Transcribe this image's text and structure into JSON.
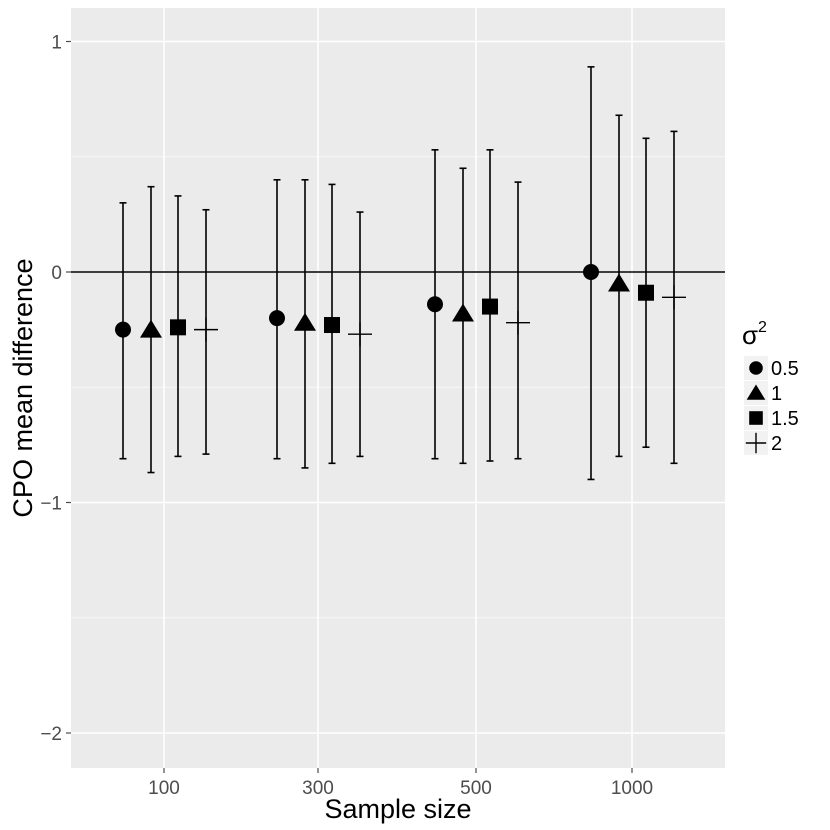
{
  "chart_data": {
    "type": "scatter",
    "subtype": "point-errorbar",
    "xlabel": "Sample size",
    "ylabel": "CPO mean difference",
    "categories": [
      "100",
      "300",
      "500",
      "1000"
    ],
    "ylim": [
      -2.15,
      1.15
    ],
    "yticks": [
      {
        "value": 1,
        "label": "1"
      },
      {
        "value": 0,
        "label": "0"
      },
      {
        "value": -1,
        "label": "−1"
      },
      {
        "value": -2,
        "label": "−2"
      }
    ],
    "reference_line": 0,
    "grid": true,
    "legend": {
      "position": "right",
      "title": "σ",
      "title_superscript": "2"
    },
    "series": [
      {
        "name": "0.5",
        "shape": "circle",
        "values": [
          -0.25,
          -0.2,
          -0.14,
          0.0
        ],
        "lower": [
          -0.81,
          -0.81,
          -0.81,
          -0.9
        ],
        "upper": [
          0.3,
          0.4,
          0.53,
          0.89
        ]
      },
      {
        "name": "1",
        "shape": "triangle",
        "values": [
          -0.25,
          -0.22,
          -0.18,
          -0.05
        ],
        "lower": [
          -0.87,
          -0.85,
          -0.83,
          -0.8
        ],
        "upper": [
          0.37,
          0.4,
          0.45,
          0.68
        ]
      },
      {
        "name": "1.5",
        "shape": "square",
        "values": [
          -0.24,
          -0.23,
          -0.15,
          -0.09
        ],
        "lower": [
          -0.8,
          -0.83,
          -0.82,
          -0.76
        ],
        "upper": [
          0.33,
          0.38,
          0.53,
          0.58
        ]
      },
      {
        "name": "2",
        "shape": "cross",
        "values": [
          -0.25,
          -0.27,
          -0.22,
          -0.11
        ],
        "lower": [
          -0.79,
          -0.8,
          -0.81,
          -0.83
        ],
        "upper": [
          0.27,
          0.26,
          0.39,
          0.61
        ]
      }
    ]
  }
}
